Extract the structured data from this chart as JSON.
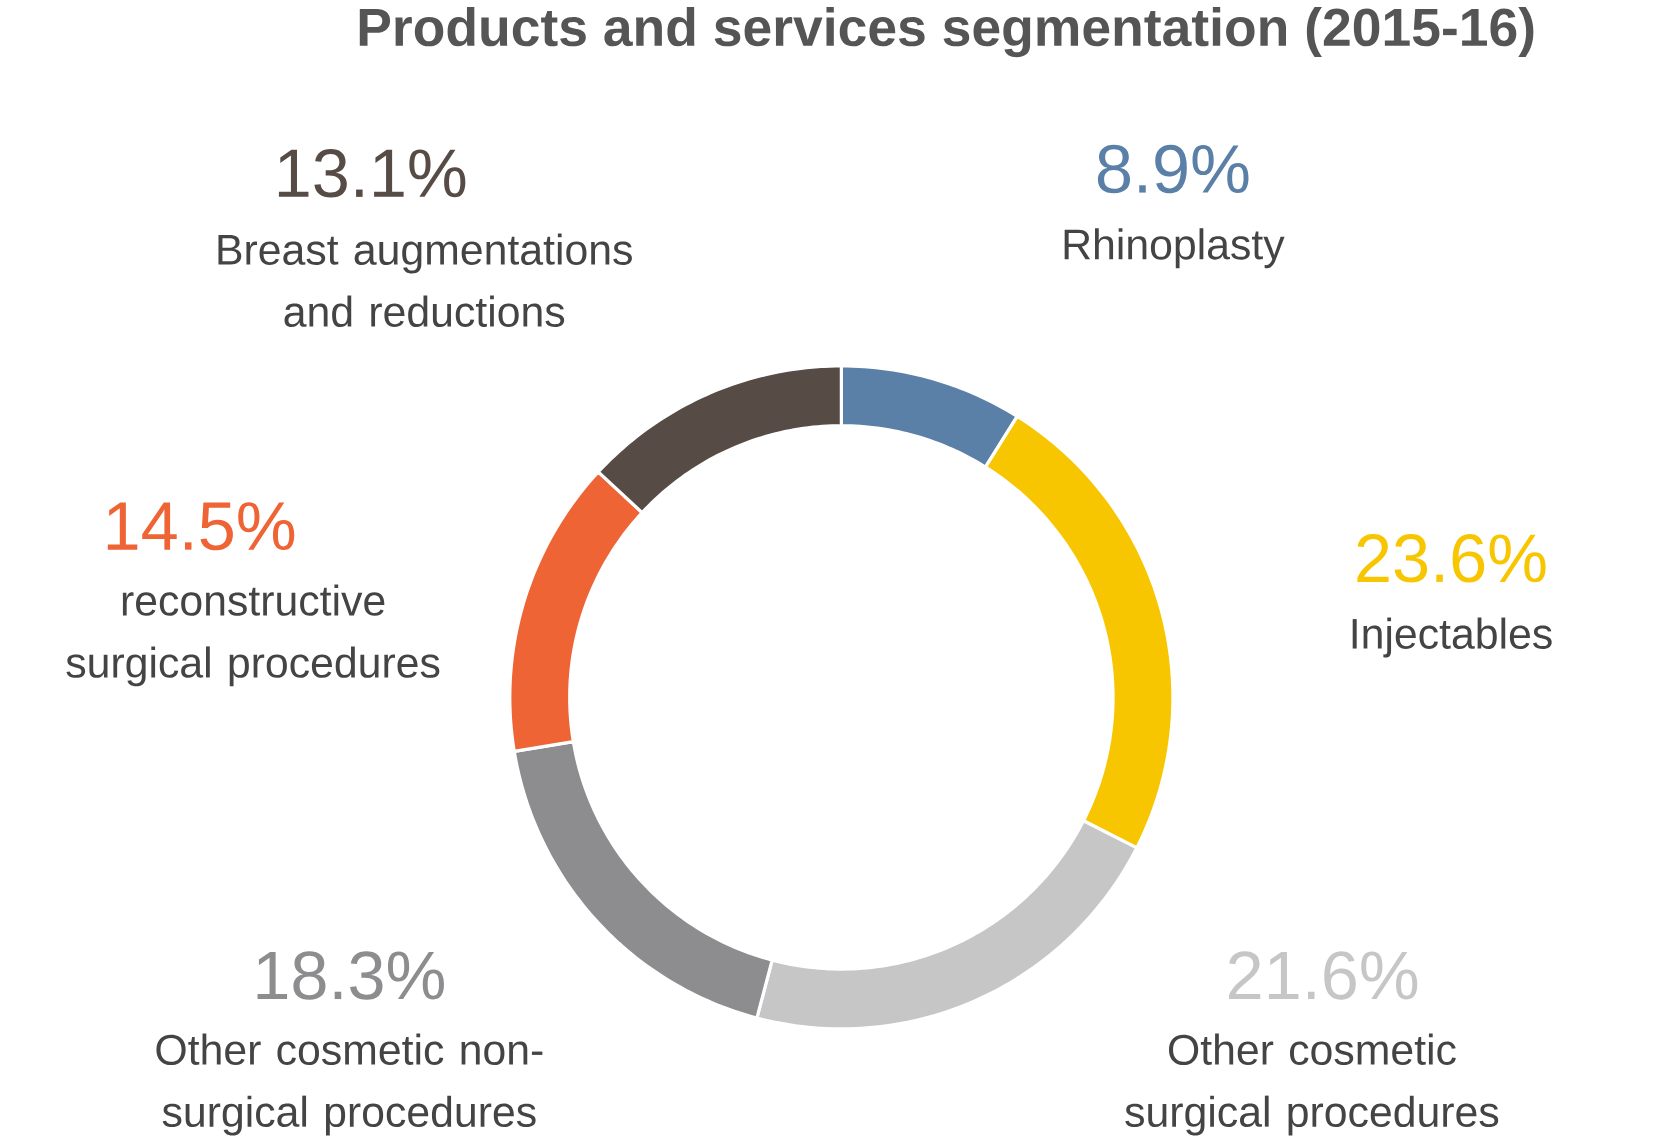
{
  "chart_data": {
    "type": "donut",
    "title": "Products and services segmentation (2015-16)",
    "categories": [
      "Rhinoplasty",
      "Injectables",
      "Other cosmetic surgical procedures",
      "Other cosmetic non-surgical procedures",
      "reconstructive surgical procedures",
      "Breast augmentations and reductions"
    ],
    "values": [
      8.9,
      23.6,
      21.6,
      18.3,
      14.5,
      13.1
    ],
    "colors": [
      "#5b80a8",
      "#f7c600",
      "#c6c6c6",
      "#8d8d8f",
      "#ee6434",
      "#574b46"
    ],
    "value_labels": [
      "8.9%",
      "23.6%",
      "21.6%",
      "18.3%",
      "14.5%",
      "13.1%"
    ]
  }
}
